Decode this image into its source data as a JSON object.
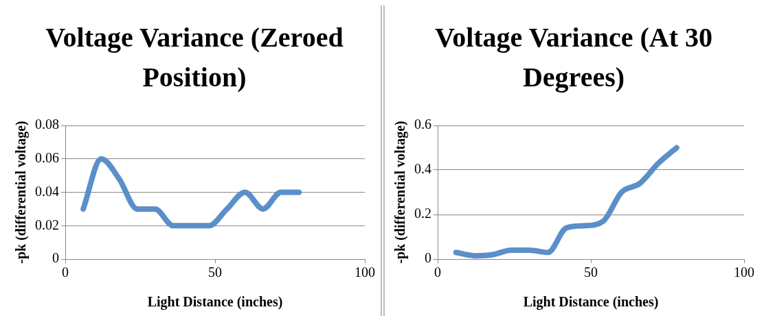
{
  "chart_data": [
    {
      "type": "line",
      "title": "Voltage Variance (Zeroed Position)",
      "xlabel": "Light Distance (inches)",
      "ylabel": "-pk (differential voltage)",
      "color": "#5b8fc9",
      "marker": "none",
      "grid": "y",
      "x": [
        6,
        12,
        18,
        24,
        30,
        36,
        42,
        48,
        54,
        60,
        66,
        72,
        78
      ],
      "values": [
        0.03,
        0.06,
        0.048,
        0.03,
        0.03,
        0.02,
        0.02,
        0.02,
        0.03,
        0.04,
        0.03,
        0.04,
        0.04
      ],
      "xlim": [
        0,
        100
      ],
      "xticks": [
        0,
        50,
        100
      ],
      "ylim": [
        0,
        0.08
      ],
      "yticks": [
        0,
        0.02,
        0.04,
        0.06,
        0.08
      ]
    },
    {
      "type": "line",
      "title": "Voltage Variance (At 30 Degrees)",
      "xlabel": "Light Distance (inches)",
      "ylabel": "-pk (differential voltage)",
      "color": "#5b8fc9",
      "marker": "none",
      "grid": "y",
      "x": [
        6,
        12,
        18,
        24,
        30,
        36,
        42,
        48,
        54,
        60,
        66,
        72,
        78
      ],
      "values": [
        0.03,
        0.015,
        0.02,
        0.04,
        0.04,
        0.03,
        0.14,
        0.15,
        0.17,
        0.3,
        0.34,
        0.43,
        0.5
      ],
      "xlim": [
        0,
        100
      ],
      "xticks": [
        0,
        50,
        100
      ],
      "ylim": [
        0,
        0.6
      ],
      "yticks": [
        0,
        0.2,
        0.4,
        0.6
      ]
    }
  ]
}
